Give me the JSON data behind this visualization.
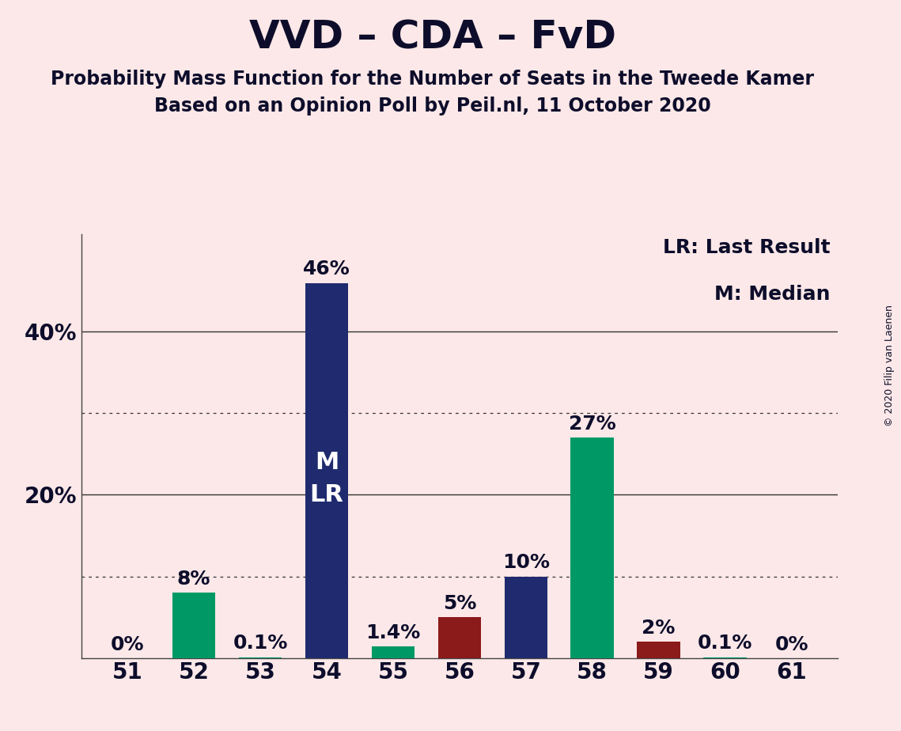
{
  "title": "VVD – CDA – FvD",
  "subtitle1": "Probability Mass Function for the Number of Seats in the Tweede Kamer",
  "subtitle2": "Based on an Opinion Poll by Peil.nl, 11 October 2020",
  "copyright": "© 2020 Filip van Laenen",
  "legend_line1": "LR: Last Result",
  "legend_line2": "M: Median",
  "categories": [
    51,
    52,
    53,
    54,
    55,
    56,
    57,
    58,
    59,
    60,
    61
  ],
  "values": [
    0.0,
    8.0,
    0.1,
    46.0,
    1.4,
    5.0,
    10.0,
    27.0,
    2.0,
    0.1,
    0.0
  ],
  "labels": [
    "0%",
    "8%",
    "0.1%",
    "46%",
    "1.4%",
    "5%",
    "10%",
    "27%",
    "2%",
    "0.1%",
    "0%"
  ],
  "colors": [
    "#009966",
    "#009966",
    "#009966",
    "#1f2b6e",
    "#009966",
    "#8b1a1a",
    "#1f2b6e",
    "#009966",
    "#8b1a1a",
    "#009966",
    "#009966"
  ],
  "bar_width": 0.65,
  "background_color": "#fce8e8",
  "ylim": [
    0,
    52
  ],
  "ytick_vals": [
    20,
    40
  ],
  "ytick_labels": [
    "20%",
    "40%"
  ],
  "dotted_yticks": [
    10,
    30
  ],
  "solid_yticks": [
    20,
    40
  ],
  "median_bar": 54,
  "lr_bar": 54,
  "text_color": "#0d0d2b",
  "white": "#ffffff",
  "title_fontsize": 36,
  "subtitle_fontsize": 17,
  "tick_fontsize": 20,
  "legend_fontsize": 18,
  "bar_label_fontsize": 18,
  "bar_text_fontsize": 22,
  "copyright_fontsize": 9
}
